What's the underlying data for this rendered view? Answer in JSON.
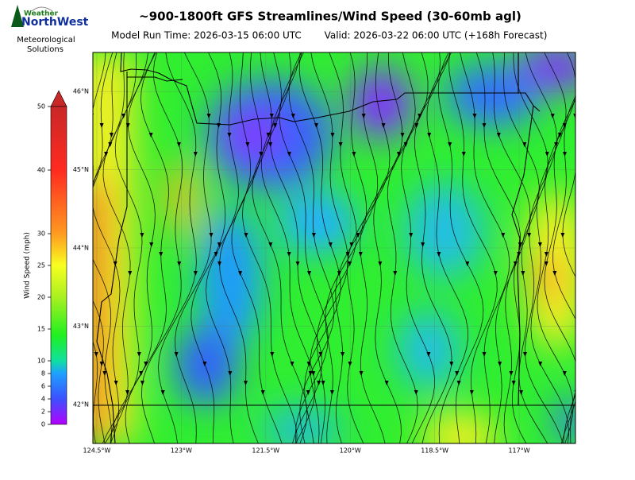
{
  "header": {
    "title": "~900-1800ft GFS Streamlines/Wind Speed (30-60mb agl)",
    "model_run": "Model Run Time: 2026-03-15 06:00 UTC",
    "valid": "Valid: 2026-03-22 06:00 UTC  (+168h Forecast)"
  },
  "logo": {
    "brand_top": "Weather",
    "brand_main": "NorthWest",
    "caption_1": "Meteorological",
    "caption_2": "Solutions"
  },
  "colorbar": {
    "label": "Wind Speed (mph)",
    "lim": [
      0,
      50
    ],
    "ticks": [
      0,
      2,
      4,
      6,
      8,
      10,
      15,
      20,
      25,
      30,
      40,
      50
    ]
  },
  "map": {
    "xlim": [
      -124.57,
      -116.0
    ],
    "ylim": [
      41.5,
      46.5
    ],
    "xticks": [
      {
        "value": -124.5,
        "label": "124.5°W"
      },
      {
        "value": -123,
        "label": "123°W"
      },
      {
        "value": -121.5,
        "label": "121.5°W"
      },
      {
        "value": -120,
        "label": "120°W"
      },
      {
        "value": -118.5,
        "label": "118.5°W"
      },
      {
        "value": -117,
        "label": "117°W"
      }
    ],
    "yticks": [
      {
        "value": 42,
        "label": "42°N"
      },
      {
        "value": 43,
        "label": "43°N"
      },
      {
        "value": 44,
        "label": "44°N"
      },
      {
        "value": 45,
        "label": "45°N"
      },
      {
        "value": 46,
        "label": "46°N"
      }
    ]
  }
}
